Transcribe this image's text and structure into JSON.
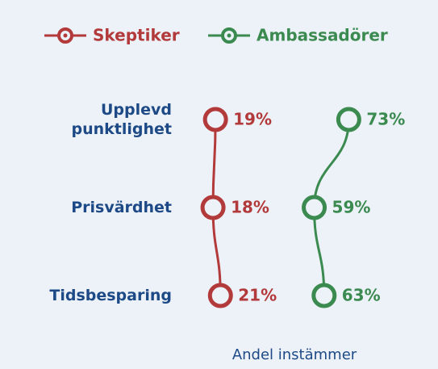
{
  "chart_data": {
    "type": "line",
    "categories": [
      "Upplevd punktlighet",
      "Prisvärdhet",
      "Tidsbesparing"
    ],
    "series": [
      {
        "name": "Skeptiker",
        "color": "#b23a3a",
        "values": [
          19,
          18,
          21
        ],
        "value_labels": [
          "19%",
          "18%",
          "21%"
        ]
      },
      {
        "name": "Ambassadörer",
        "color": "#3b8a4f",
        "values": [
          73,
          59,
          63
        ],
        "value_labels": [
          "73%",
          "59%",
          "63%"
        ]
      }
    ],
    "xlabel": "Andel instämmer",
    "xlim": [
      0,
      100
    ],
    "legend": "top"
  }
}
